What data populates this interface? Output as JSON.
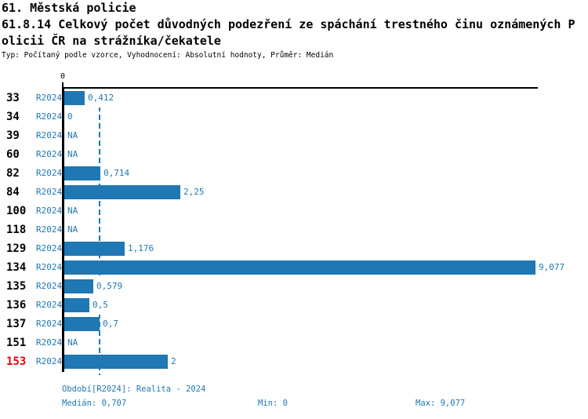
{
  "header": {
    "line1": "61. Městská policie",
    "line2": "61.8.14 Celkový počet důvodných podezření ze spáchání trestného činu oznámených P",
    "line3": "olicii ČR na strážníka/čekatele",
    "meta": "Typ: Počítaný podle vzorce, Vyhodnocení: Absolutní hodnoty, Průměr: Medián"
  },
  "chart_data": {
    "type": "bar",
    "orientation": "horizontal",
    "title": "61.8.14 Celkový počet důvodných podezření ze spáchání trestného činu oznámených Policii ČR na strážníka/čekatele",
    "categories": [
      "33",
      "34",
      "39",
      "60",
      "82",
      "84",
      "100",
      "118",
      "129",
      "134",
      "135",
      "136",
      "137",
      "151",
      "153"
    ],
    "series": [
      {
        "name": "R2024",
        "values": [
          0.412,
          0,
          null,
          null,
          0.714,
          2.25,
          null,
          null,
          1.176,
          9.077,
          0.579,
          0.5,
          0.7,
          null,
          2
        ]
      }
    ],
    "value_labels": [
      "0,412",
      "0",
      "NA",
      "NA",
      "0,714",
      "2,25",
      "NA",
      "NA",
      "1,176",
      "9,077",
      "0,579",
      "0,5",
      "0,7",
      "NA",
      "2"
    ],
    "x_tick_labels": [
      "0"
    ],
    "xlim": [
      0,
      9.14
    ],
    "median_line_value": 0.707,
    "highlighted_category": "153",
    "grid": false,
    "legend_position": "none"
  },
  "footer": {
    "period": "Období[R2024]: Realita - 2024",
    "median": "Medián: 0,707",
    "min": "Min: 0",
    "max": "Max: 9,077"
  },
  "colors": {
    "bar": "#1f77b4",
    "accent_text": "#1f77b4",
    "highlight": "#e8000d",
    "axis": "#000000",
    "background": "#ffffff"
  }
}
